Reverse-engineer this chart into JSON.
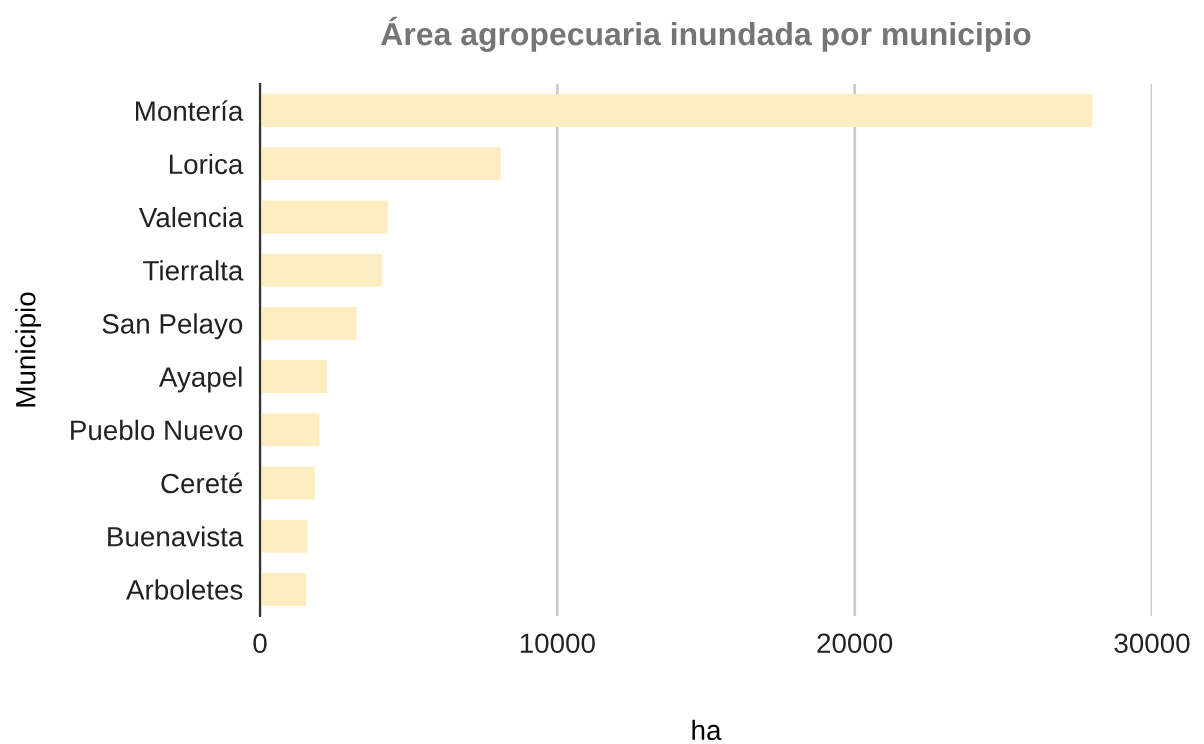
{
  "chart_data": {
    "type": "bar",
    "orientation": "horizontal",
    "title": "Área agropecuaria inundada por municipio",
    "xlabel": "ha",
    "ylabel": "Municipio",
    "categories": [
      "Montería",
      "Lorica",
      "Valencia",
      "Tierralta",
      "San Pelayo",
      "Ayapel",
      "Pueblo Nuevo",
      "Cereté",
      "Buenavista",
      "Arboletes"
    ],
    "values": [
      28000,
      8100,
      4300,
      4100,
      3250,
      2250,
      2000,
      1850,
      1600,
      1550
    ],
    "color": "#ffedc2",
    "xlim": [
      0,
      30000
    ],
    "xticks": [
      0,
      10000,
      20000,
      30000
    ],
    "grid": "x",
    "legend": false
  }
}
